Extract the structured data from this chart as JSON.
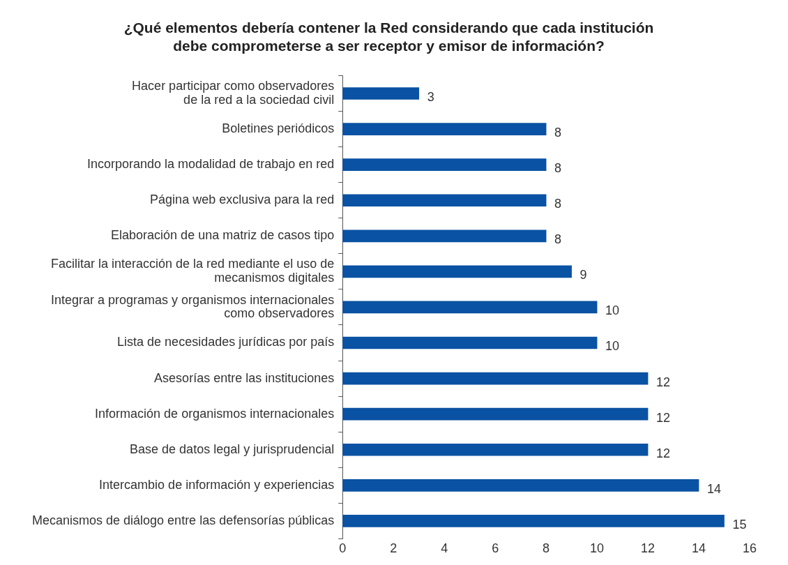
{
  "chart_data": {
    "type": "bar",
    "orientation": "horizontal",
    "title": "¿Qué elementos debería contener la Red considerando que cada institución\ndebe comprometerse a ser receptor y emisor de información?",
    "categories": [
      "Hacer participar como observadores\nde la red a la sociedad civil",
      "Boletines periódicos",
      "Incorporando la modalidad de trabajo en red",
      "Página web exclusiva para la red",
      "Elaboración de una matriz de casos tipo",
      "Facilitar la interacción de la red mediante el uso de\nmecanismos digitales",
      "Integrar a programas y organismos internacionales\ncomo observadores",
      "Lista de necesidades jurídicas por país",
      "Asesorías entre las instituciones",
      "Información de organismos internacionales",
      "Base de datos legal y jurisprudencial",
      "Intercambio de información y experiencias",
      "Mecanismos de diálogo entre las defensorías públicas"
    ],
    "values": [
      3,
      8,
      8,
      8,
      8,
      9,
      10,
      10,
      12,
      12,
      12,
      14,
      15
    ],
    "color": "#0a52a3",
    "xlim": [
      0,
      16
    ],
    "xticks": [
      0,
      2,
      4,
      6,
      8,
      10,
      12,
      14,
      16
    ],
    "grid": false,
    "legend": false,
    "data_labels": true
  }
}
